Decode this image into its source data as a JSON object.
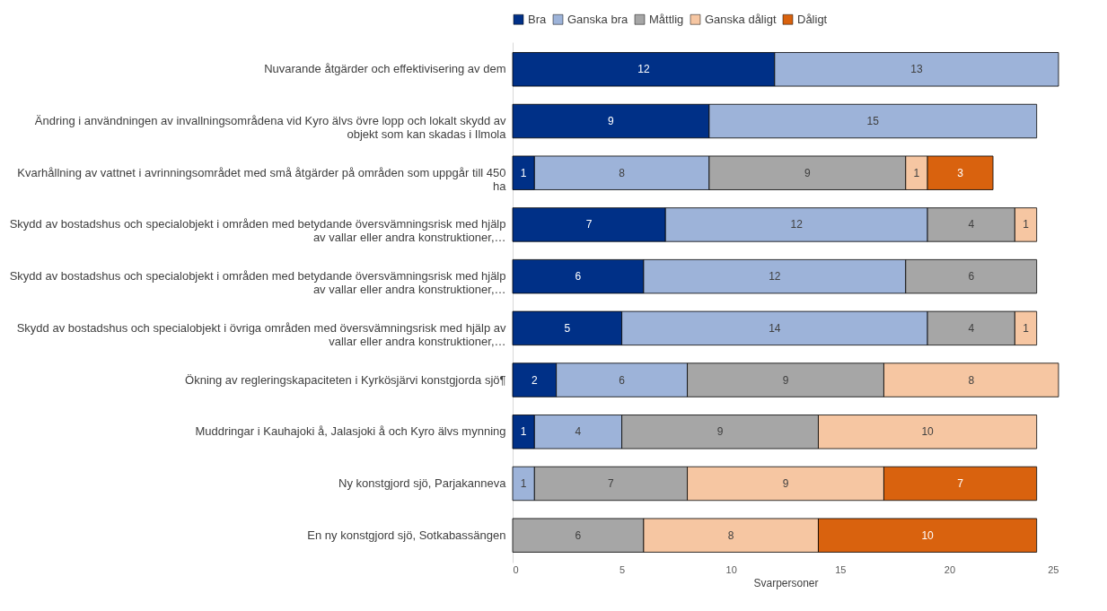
{
  "chart_data": {
    "type": "bar",
    "orientation": "horizontal",
    "stacked": true,
    "data_labels": true,
    "legend": "top",
    "xlabel": "Svarpersoner",
    "xlim": [
      0,
      25
    ],
    "xticks": [
      0,
      5,
      10,
      15,
      20,
      25
    ],
    "categories": [
      "Nuvarande åtgärder och effektivisering av dem",
      "Ändring i användningen av invallningsområdena vid Kyro älvs övre lopp och lokalt skydd av objekt som kan skadas i Ilmola",
      "Kvarhållning av vattnet i avrinningsområdet med små åtgärder på områden som uppgår till 450 ha",
      "Skydd av bostadshus och specialobjekt i områden med betydande översvämningsrisk med hjälp av vallar eller andra konstruktioner,…",
      "Skydd av bostadshus och specialobjekt i områden med betydande översvämningsrisk med hjälp av vallar eller andra konstruktioner,…",
      "Skydd av bostadshus och specialobjekt i övriga områden med översvämningsrisk med hjälp av vallar eller andra konstruktioner,…",
      "Ökning av regleringskapaciteten i Kyrkösjärvi konstgjorda sjö¶",
      "Muddringar i Kauhajoki å, Jalasjoki å och Kyro älvs mynning",
      "Ny konstgjord sjö, Parjakanneva",
      "En ny konstgjord sjö, Sotkabassängen"
    ],
    "series": [
      {
        "name": "Bra",
        "color": "#003087",
        "values": [
          12,
          9,
          1,
          7,
          6,
          5,
          2,
          1,
          null,
          null
        ]
      },
      {
        "name": "Ganska bra",
        "color": "#9db3d9",
        "values": [
          13,
          15,
          8,
          12,
          12,
          14,
          6,
          4,
          1,
          null
        ]
      },
      {
        "name": "Måttlig",
        "color": "#a6a6a6",
        "values": [
          null,
          null,
          9,
          4,
          6,
          4,
          9,
          9,
          7,
          6
        ]
      },
      {
        "name": "Ganska dåligt",
        "color": "#f6c6a2",
        "values": [
          null,
          null,
          1,
          1,
          null,
          1,
          8,
          10,
          9,
          8
        ]
      },
      {
        "name": "Dåligt",
        "color": "#d9620e",
        "values": [
          null,
          null,
          3,
          null,
          null,
          null,
          null,
          null,
          7,
          10
        ]
      }
    ]
  }
}
